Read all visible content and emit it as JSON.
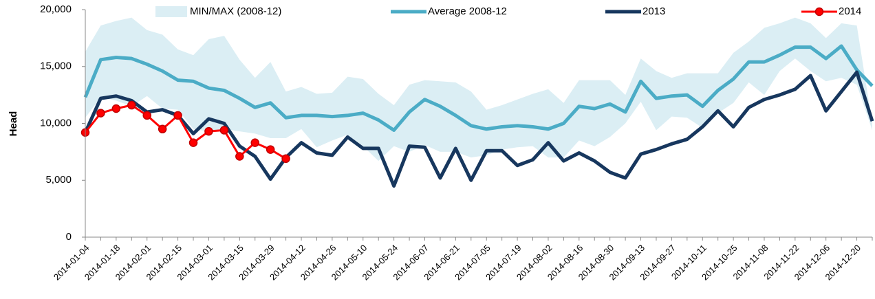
{
  "chart_data": {
    "type": "line",
    "y_label": "Head",
    "categories": [
      "2014-01-04",
      null,
      "2014-01-18",
      null,
      "2014-02-01",
      null,
      "2014-02-15",
      null,
      "2014-03-01",
      null,
      "2014-03-15",
      null,
      "2014-03-29",
      null,
      "2014-04-12",
      null,
      "2014-04-26",
      null,
      "2014-05-10",
      null,
      "2014-05-24",
      null,
      "2014-06-07",
      null,
      "2014-06-21",
      null,
      "2014-07-05",
      null,
      "2014-07-19",
      null,
      "2014-08-02",
      null,
      "2014-08-16",
      null,
      "2014-08-30",
      null,
      "2014-09-13",
      null,
      "2014-09-27",
      null,
      "2014-10-11",
      null,
      "2014-10-25",
      null,
      "2014-11-08",
      null,
      "2014-11-22",
      null,
      "2014-12-06",
      null,
      "2014-12-20",
      null
    ],
    "ylim": [
      0,
      20000
    ],
    "yticks": [
      0,
      {
        "value": 5000,
        "label": "5,000"
      },
      {
        "value": 10000,
        "label": "10,000"
      },
      {
        "value": 15000,
        "label": "15,000"
      },
      {
        "value": 20000,
        "label": "20,000"
      }
    ],
    "legend": "top",
    "series": [
      {
        "name": "MIN/MAX (2008-12)",
        "kind": "band",
        "color": "#dbeef4",
        "min": [
          10500,
          12300,
          12000,
          11500,
          12400,
          11300,
          11200,
          9500,
          9300,
          9500,
          9300,
          9100,
          8700,
          8700,
          9500,
          7900,
          8500,
          9000,
          8000,
          6700,
          8000,
          7500,
          8100,
          7500,
          7500,
          7000,
          7200,
          7700,
          7900,
          8000,
          7000,
          7000,
          8500,
          8000,
          8800,
          10000,
          11900,
          9400,
          10600,
          10500,
          9600,
          10900,
          11800,
          13600,
          12500,
          14600,
          15700,
          14600,
          13700,
          14000,
          13400,
          9400
        ],
        "max": [
          16300,
          18600,
          19000,
          19300,
          18200,
          17800,
          16500,
          16000,
          17400,
          17700,
          15600,
          14000,
          15400,
          12800,
          13200,
          12600,
          12700,
          14100,
          13900,
          12600,
          11600,
          13400,
          13800,
          13700,
          13600,
          12800,
          11200,
          11600,
          12100,
          12600,
          13000,
          11800,
          13800,
          13800,
          13800,
          12500,
          15700,
          14600,
          14000,
          14400,
          14400,
          14400,
          16200,
          17200,
          18400,
          18800,
          19300,
          18800,
          17500,
          18800,
          18600,
          10000
        ]
      },
      {
        "name": "Average 2008-12",
        "kind": "line",
        "color": "#4bacc6",
        "values": [
          12300,
          15600,
          15800,
          15700,
          15200,
          14600,
          13800,
          13700,
          13100,
          12900,
          12200,
          11400,
          11800,
          10500,
          10700,
          10700,
          10600,
          10700,
          10900,
          10300,
          9400,
          11000,
          12100,
          11500,
          10700,
          9800,
          9500,
          9700,
          9800,
          9700,
          9500,
          10000,
          11500,
          11300,
          11700,
          11000,
          13700,
          12200,
          12400,
          12500,
          11500,
          12900,
          13900,
          15400,
          15400,
          16000,
          16700,
          16700,
          15700,
          16800,
          14700,
          13300
        ]
      },
      {
        "name": "2013",
        "kind": "line",
        "color": "#17375e",
        "values": [
          9200,
          12200,
          12400,
          12000,
          11000,
          11200,
          10700,
          9100,
          10400,
          10000,
          8000,
          7100,
          5100,
          7000,
          8300,
          7400,
          7200,
          8800,
          7800,
          7800,
          4500,
          8000,
          7900,
          5200,
          7800,
          5000,
          7600,
          7600,
          6300,
          6800,
          8300,
          6700,
          7400,
          6700,
          5700,
          5200,
          7300,
          7700,
          8200,
          8600,
          9700,
          11100,
          9700,
          11400,
          12100,
          12500,
          13000,
          14200,
          11100,
          12800,
          14500,
          10200
        ]
      },
      {
        "name": "2014",
        "kind": "marker-line",
        "color": "#ff0000",
        "values": [
          9200,
          10900,
          11300,
          11600,
          10700,
          9500,
          10700,
          8300,
          9300,
          9400,
          7100,
          8300,
          7700,
          6900,
          null,
          null,
          null,
          null,
          null,
          null,
          null,
          null,
          null,
          null,
          null,
          null,
          null,
          null,
          null,
          null,
          null,
          null,
          null,
          null,
          null,
          null,
          null,
          null,
          null,
          null,
          null,
          null,
          null,
          null,
          null,
          null,
          null,
          null,
          null,
          null,
          null,
          null
        ]
      }
    ]
  }
}
